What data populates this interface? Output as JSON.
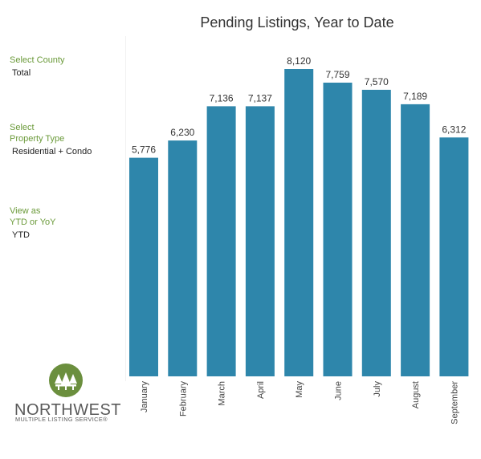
{
  "filters": {
    "county": {
      "label": "Select County",
      "value": "Total"
    },
    "property_type": {
      "label_line1": "Select",
      "label_line2": "Property Type",
      "value": "Residential + Condo"
    },
    "view": {
      "label_line1": "View as",
      "label_line2": "YTD or YoY",
      "value": "YTD"
    }
  },
  "logo": {
    "name": "NORTHWEST",
    "subtitle": "MULTIPLE LISTING SERVICE®",
    "color": "#6b8f3e",
    "icon": "trees-emblem-icon"
  },
  "chart_data": {
    "type": "bar",
    "title": "Pending Listings, Year to Date",
    "xlabel": "",
    "ylabel": "",
    "categories": [
      "January",
      "February",
      "March",
      "April",
      "May",
      "June",
      "July",
      "August",
      "September"
    ],
    "values": [
      5776,
      6230,
      7136,
      7137,
      8120,
      7759,
      7570,
      7189,
      6312
    ],
    "ylim": [
      0,
      8120
    ],
    "bar_color": "#2e86ab",
    "grid": false,
    "legend": "none"
  }
}
